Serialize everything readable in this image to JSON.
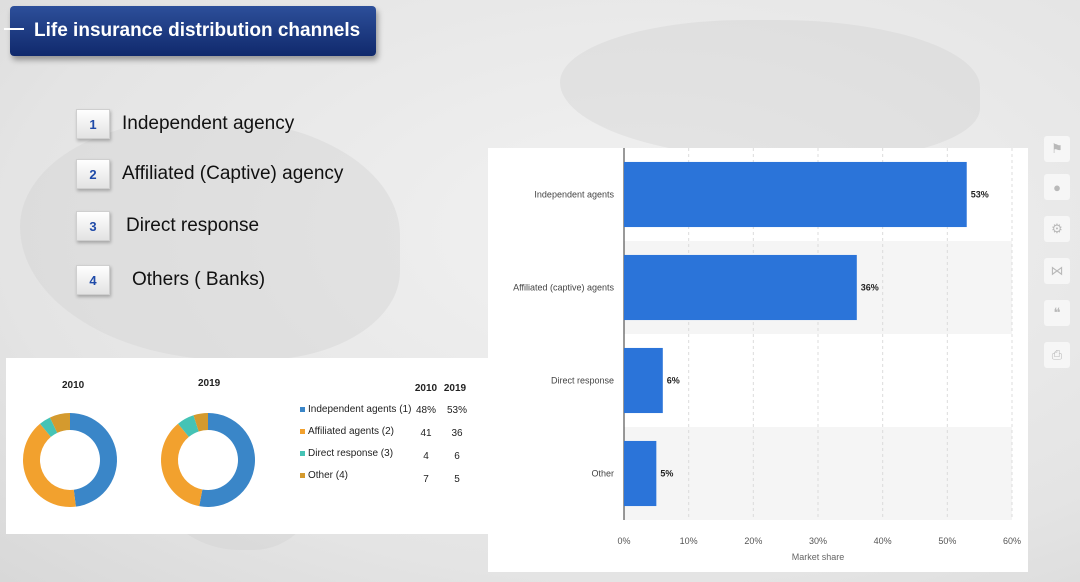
{
  "title": "Life insurance distribution channels",
  "channels": [
    {
      "number": "1",
      "label": "Independent agency"
    },
    {
      "number": "2",
      "label": "Affiliated (Captive) agency"
    },
    {
      "number": "3",
      "label": "Direct response"
    },
    {
      "number": "4",
      "label": "Others ( Banks)"
    }
  ],
  "colors": {
    "banner": "#1a3a85",
    "bar": "#2b74d9",
    "independent": "#3a86c8",
    "affiliated": "#f2a12e",
    "direct": "#45c3b5",
    "other": "#d49a2e"
  },
  "side_icons": [
    "bookmark-icon",
    "bell-icon",
    "gear-icon",
    "share-icon",
    "quote-icon",
    "print-icon"
  ],
  "chart_data": [
    {
      "type": "bar",
      "orientation": "horizontal",
      "categories": [
        "Independent agents",
        "Affiliated (captive) agents",
        "Direct response",
        "Other"
      ],
      "values": [
        53,
        36,
        6,
        5
      ],
      "value_labels": [
        "53%",
        "36%",
        "6%",
        "5%"
      ],
      "xlabel": "Market share",
      "xlim": [
        0,
        60
      ],
      "xticks": [
        "0%",
        "10%",
        "20%",
        "30%",
        "40%",
        "50%",
        "60%"
      ],
      "grid": "vertical"
    },
    {
      "type": "pie",
      "variant": "donut",
      "years": [
        "2010",
        "2019"
      ],
      "series_labels": [
        "Independent agents (1)",
        "Affiliated agents (2)",
        "Direct response (3)",
        "Other (4)"
      ],
      "values_2010": [
        48,
        41,
        4,
        7
      ],
      "values_2019": [
        53,
        36,
        6,
        5
      ],
      "table": {
        "headers": [
          "2010",
          "2019"
        ],
        "rows": [
          [
            "48%",
            "53%"
          ],
          [
            "41",
            "36"
          ],
          [
            "4",
            "6"
          ],
          [
            "7",
            "5"
          ]
        ]
      }
    }
  ]
}
